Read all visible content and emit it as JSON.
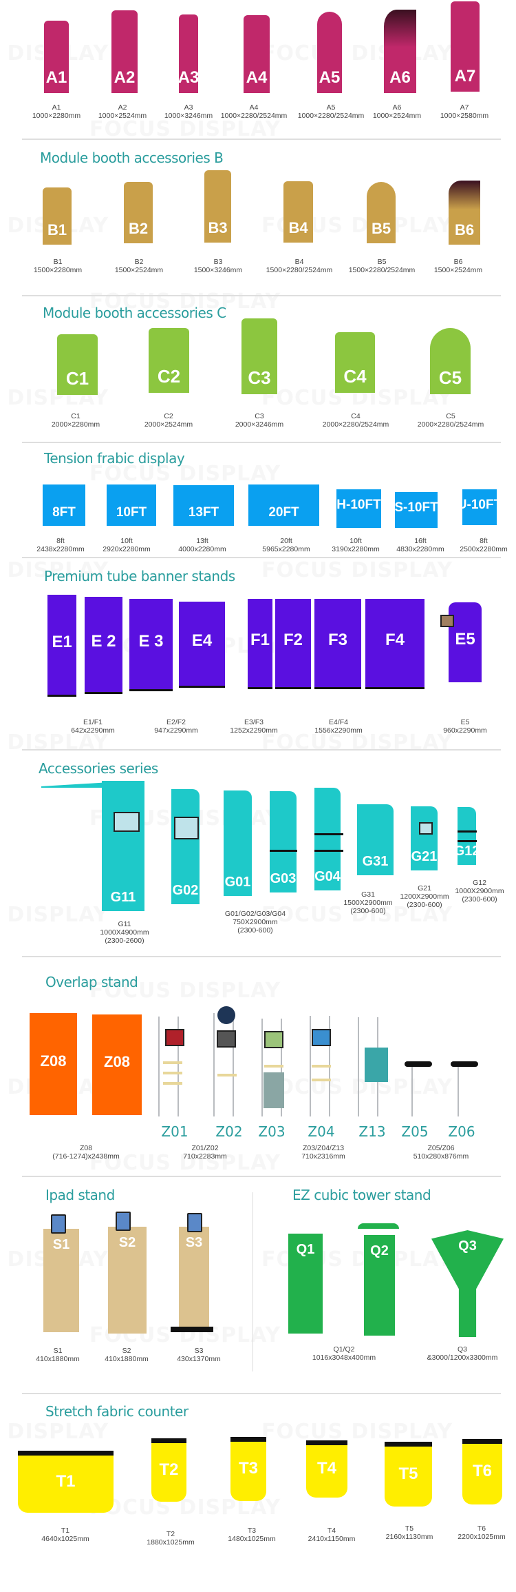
{
  "watermark": "FOCUS DISPLAY",
  "colors": {
    "heading": "#2a9d9d",
    "a": "#c0286a",
    "b": "#c9a04a",
    "c": "#8cc63f",
    "tension": "#0aa0f0",
    "premium": "#5a10e0",
    "accessories": "#1ec9c9",
    "overlap": "#ff6400",
    "ipad": "#dcc28f",
    "ez": "#22b14c",
    "counter": "#ffee00"
  },
  "sections": {
    "a": {
      "heading": null,
      "panels": [
        "A1",
        "A2",
        "A3",
        "A4",
        "A5",
        "A6",
        "A7"
      ],
      "labels": [
        {
          "name": "A1",
          "size": "1000×2280mm"
        },
        {
          "name": "A2",
          "size": "1000×2524mm"
        },
        {
          "name": "A3",
          "size": "1000×3246mm"
        },
        {
          "name": "A4",
          "size": "1000×2280/2524mm"
        },
        {
          "name": "A5",
          "size": "1000×2280/2524mm"
        },
        {
          "name": "A6",
          "size": "1000×2524mm"
        },
        {
          "name": "A7",
          "size": "1000×2580mm"
        }
      ]
    },
    "b": {
      "heading": "Module booth accessories B",
      "panels": [
        "B1",
        "B2",
        "B3",
        "B4",
        "B5",
        "B6"
      ],
      "labels": [
        {
          "name": "B1",
          "size": "1500×2280mm"
        },
        {
          "name": "B2",
          "size": "1500×2524mm"
        },
        {
          "name": "B3",
          "size": "1500×3246mm"
        },
        {
          "name": "B4",
          "size": "1500×2280/2524mm"
        },
        {
          "name": "B5",
          "size": "1500×2280/2524mm"
        },
        {
          "name": "B6",
          "size": "1500×2524mm"
        }
      ]
    },
    "c": {
      "heading": "Module booth accessories C",
      "panels": [
        "C1",
        "C2",
        "C3",
        "C4",
        "C5"
      ],
      "labels": [
        {
          "name": "C1",
          "size": "2000×2280mm"
        },
        {
          "name": "C2",
          "size": "2000×2524mm"
        },
        {
          "name": "C3",
          "size": "2000×3246mm"
        },
        {
          "name": "C4",
          "size": "2000×2280/2524mm"
        },
        {
          "name": "C5",
          "size": "2000×2280/2524mm"
        }
      ]
    },
    "tension": {
      "heading": "Tension frabic display",
      "panels": [
        "8FT",
        "10FT",
        "13FT",
        "20FT",
        "H-10FT",
        "S-10FT",
        "U-10FT"
      ],
      "labels": [
        {
          "name": "8ft",
          "size": "2438x2280mm"
        },
        {
          "name": "10ft",
          "size": "2920x2280mm"
        },
        {
          "name": "13ft",
          "size": "4000x2280mm"
        },
        {
          "name": "20ft",
          "size": "5965x2280mm"
        },
        {
          "name": "10ft",
          "size": "3190x2280mm"
        },
        {
          "name": "16ft",
          "size": "4830x2280mm"
        },
        {
          "name": "8ft",
          "size": "2500x2280mm"
        }
      ]
    },
    "premium": {
      "heading": "Premium tube banner stands",
      "panels": [
        "E1",
        "E 2",
        "E 3",
        "E4",
        "F1",
        "F2",
        "F3",
        "F4",
        "E5"
      ],
      "labels": [
        {
          "name": "E1/F1",
          "size": "642x2290mm"
        },
        {
          "name": "E2/F2",
          "size": "947x2290mm"
        },
        {
          "name": "E3/F3",
          "size": "1252x2290mm"
        },
        {
          "name": "E4/F4",
          "size": "1556x2290mm"
        },
        {
          "name": "E5",
          "size": "960x2290mm"
        }
      ]
    },
    "accessories": {
      "heading": "Accessories series",
      "panels": [
        "G11",
        "G02",
        "G01",
        "G03",
        "G04",
        "G31",
        "G21",
        "G12"
      ],
      "labels": [
        {
          "name": "G11",
          "size": "1000X4900mm",
          "range": "(2300-2600)"
        },
        {
          "name": "G01/G02/G03/G04",
          "size": "750X2900mm",
          "range": "(2300-600)"
        },
        {
          "name": "G31",
          "size": "1500X2900mm",
          "range": "(2300-600)"
        },
        {
          "name": "G21",
          "size": "1200X2900mm",
          "range": "(2300-600)"
        },
        {
          "name": "G12",
          "size": "1000X2900mm",
          "range": "(2300-600)"
        }
      ]
    },
    "overlap": {
      "heading": "Overlap stand",
      "panels": [
        "Z08",
        "Z08"
      ],
      "codes": [
        "Z01",
        "Z02",
        "Z03",
        "Z04",
        "Z13",
        "Z05",
        "Z06"
      ],
      "labels": [
        {
          "name": "Z08",
          "size": "(716-1274)x2438mm"
        },
        {
          "name": "Z01/Z02",
          "size": "710x2283mm"
        },
        {
          "name": "Z03/Z04/Z13",
          "size": "710x2316mm"
        },
        {
          "name": "Z05/Z06",
          "size": "510x280x876mm"
        }
      ]
    },
    "ipad": {
      "heading": "Ipad stand",
      "panels": [
        "S1",
        "S2",
        "S3"
      ],
      "labels": [
        {
          "name": "S1",
          "size": "410x1880mm"
        },
        {
          "name": "S2",
          "size": "410x1880mm"
        },
        {
          "name": "S3",
          "size": "430x1370mm"
        }
      ]
    },
    "ez": {
      "heading": "EZ cubic tower stand",
      "panels": [
        "Q1",
        "Q2",
        "Q3"
      ],
      "labels": [
        {
          "name": "Q1/Q2",
          "size": "1016x3048x400mm"
        },
        {
          "name": "Q3",
          "size": "&3000/1200x3300mm"
        }
      ]
    },
    "counter": {
      "heading": "Stretch fabric counter",
      "panels": [
        "T1",
        "T2",
        "T3",
        "T4",
        "T5",
        "T6"
      ],
      "labels": [
        {
          "name": "T1",
          "size": "4640x1025mm"
        },
        {
          "name": "T2",
          "size": "1880x1025mm"
        },
        {
          "name": "T3",
          "size": "1480x1025mm"
        },
        {
          "name": "T4",
          "size": "2410x1150mm"
        },
        {
          "name": "T5",
          "size": "2160x1130mm"
        },
        {
          "name": "T6",
          "size": "2200x1025mm"
        }
      ]
    }
  }
}
